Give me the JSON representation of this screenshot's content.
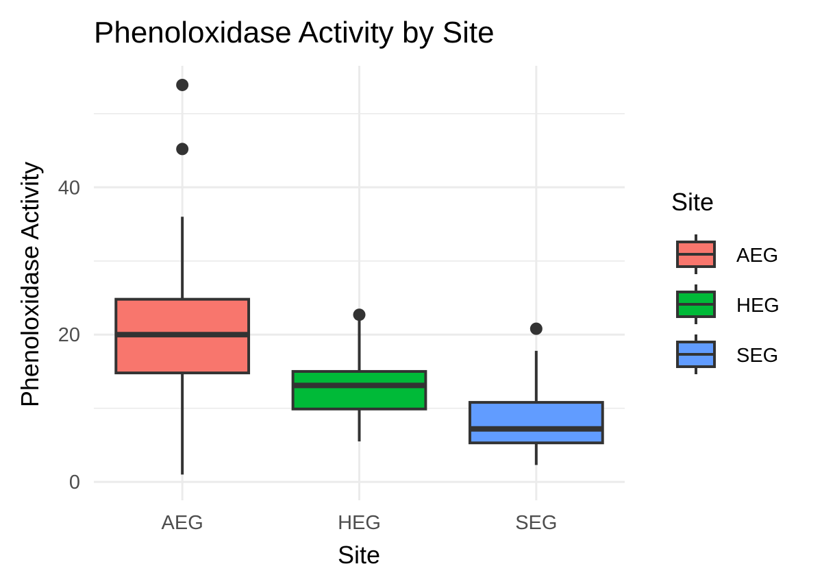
{
  "chart_data": {
    "type": "boxplot",
    "title": "Phenoloxidase Activity by Site",
    "xlabel": "Site",
    "ylabel": "Phenoloxidase Activity",
    "ylim": [
      -2.5,
      56.5
    ],
    "yticks": [
      0,
      20,
      40
    ],
    "grid": true,
    "legend": {
      "title": "Site",
      "position": "right"
    },
    "categories": [
      "AEG",
      "HEG",
      "SEG"
    ],
    "colors": [
      "#F8766D",
      "#00BA38",
      "#619CFF"
    ],
    "boxes": [
      {
        "category": "AEG",
        "whisker_low": 1.0,
        "q1": 14.8,
        "median": 20.0,
        "q3": 24.8,
        "whisker_high": 36.0,
        "outliers": [
          45.2,
          53.9
        ]
      },
      {
        "category": "HEG",
        "whisker_low": 5.5,
        "q1": 9.9,
        "median": 13.1,
        "q3": 15.0,
        "whisker_high": 22.3,
        "outliers": [
          22.7
        ]
      },
      {
        "category": "SEG",
        "whisker_low": 2.3,
        "q1": 5.3,
        "median": 7.2,
        "q3": 10.8,
        "whisker_high": 17.8,
        "outliers": [
          20.8
        ]
      }
    ]
  }
}
